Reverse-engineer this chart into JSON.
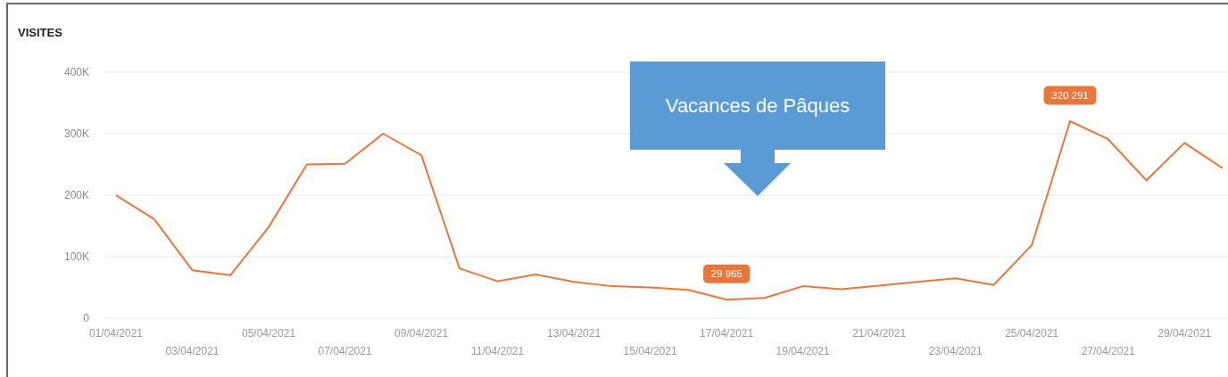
{
  "chart_data": {
    "type": "line",
    "title": "VISITES",
    "categories": [
      "01/04/2021",
      null,
      "03/04/2021",
      null,
      "05/04/2021",
      null,
      "07/04/2021",
      null,
      "09/04/2021",
      null,
      "11/04/2021",
      null,
      "13/04/2021",
      null,
      "15/04/2021",
      null,
      "17/04/2021",
      null,
      "19/04/2021",
      null,
      "21/04/2021",
      null,
      "23/04/2021",
      null,
      "25/04/2021",
      null,
      "27/04/2021",
      null,
      "29/04/2021",
      null
    ],
    "series": [
      {
        "color": "#e8773d",
        "values": [
          200000,
          161000,
          78000,
          70000,
          148000,
          250000,
          251000,
          300000,
          265000,
          81000,
          60000,
          71000,
          59000,
          52000,
          50000,
          46000,
          29965,
          33000,
          52000,
          47000,
          53000,
          59000,
          65000,
          54000,
          119000,
          320291,
          291000,
          224000,
          285000,
          244000
        ],
        "value_labels": [
          null,
          null,
          null,
          null,
          null,
          null,
          null,
          null,
          null,
          null,
          null,
          null,
          null,
          null,
          null,
          null,
          "29 965",
          null,
          null,
          null,
          null,
          null,
          null,
          null,
          null,
          "320 291",
          null,
          null,
          null,
          null
        ]
      }
    ],
    "ylim": [
      0,
      400000
    ],
    "yticks": [
      0,
      {
        "value": 100000,
        "label": "100K"
      },
      {
        "value": 200000,
        "label": "200K"
      },
      {
        "value": 300000,
        "label": "300K"
      },
      {
        "value": 400000,
        "label": "400K"
      }
    ],
    "grid": "y",
    "legend": false,
    "annotations": [
      "Vacances de Pâques"
    ]
  }
}
